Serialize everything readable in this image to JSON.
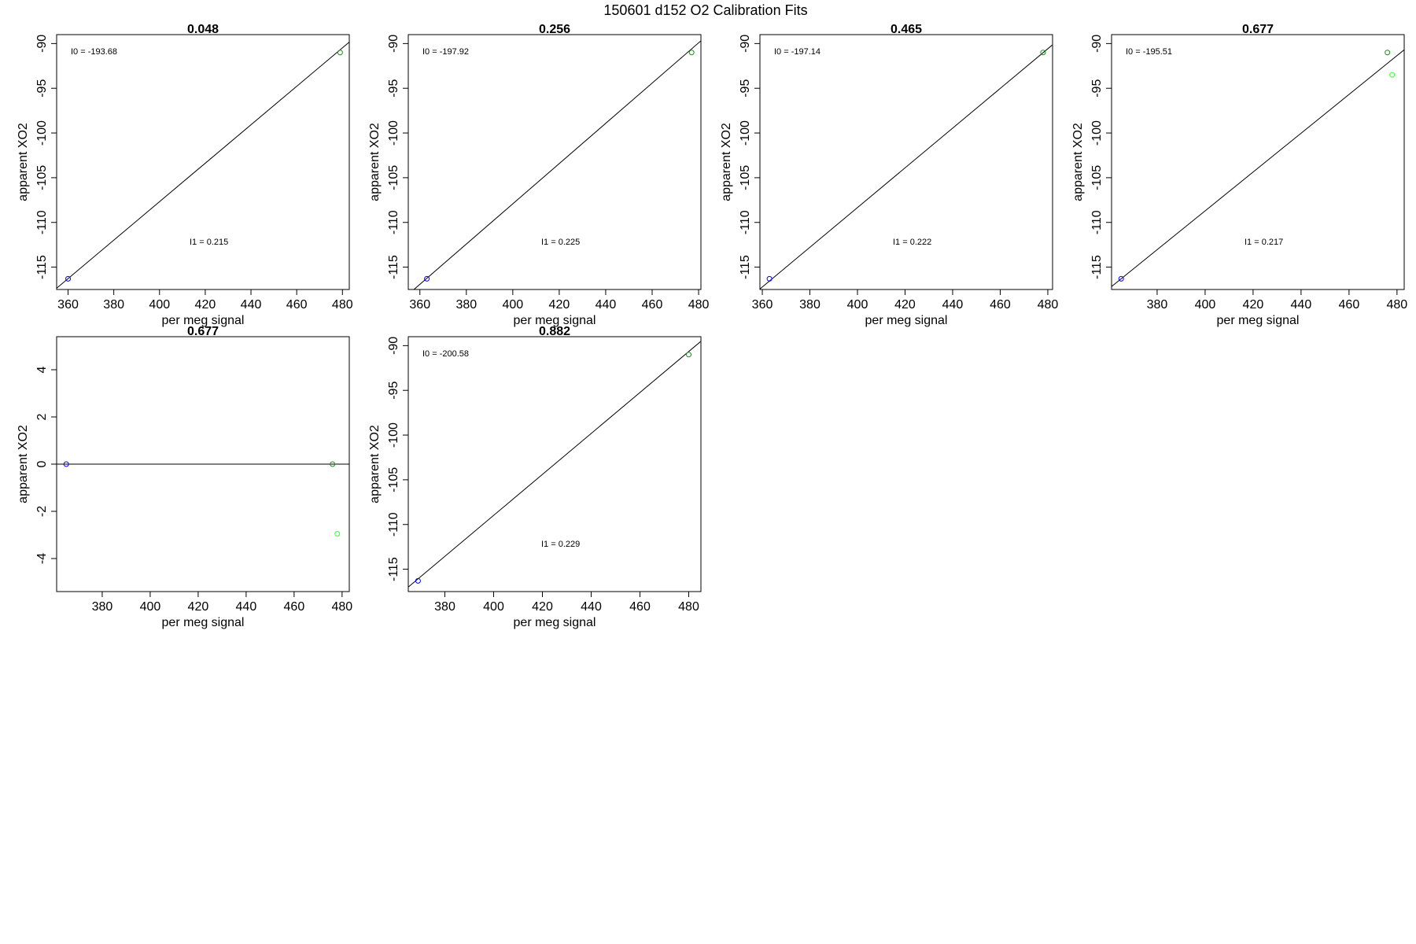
{
  "figure": {
    "title": "150601   d152   O2 Calibration Fits"
  },
  "colors": {
    "axis": "#000000",
    "fit_line": "#000000",
    "low_point": "#0000ff",
    "mid_point": "#228b22",
    "high_point": "#33ff33"
  },
  "chart_data": [
    {
      "type": "scatter",
      "title": "0.048",
      "xlabel": "per meg signal",
      "ylabel": "apparent XO2",
      "xlim": [
        355,
        483
      ],
      "ylim": [
        -117.5,
        -89
      ],
      "x_ticks": [
        360,
        380,
        400,
        420,
        440,
        460,
        480
      ],
      "y_ticks": [
        -90,
        -95,
        -100,
        -105,
        -110,
        -115
      ],
      "annotations": {
        "intercept": "I0 =  -193.68",
        "slope": "I1 =  0.215"
      },
      "fit_line": {
        "slope": 0.215,
        "intercept": -193.68
      },
      "points": [
        {
          "x": 360,
          "y": -116.3,
          "color": "blue"
        },
        {
          "x": 479,
          "y": -91,
          "color": "darkgreen"
        }
      ]
    },
    {
      "type": "scatter",
      "title": "0.256",
      "xlabel": "per meg signal",
      "ylabel": "apparent XO2",
      "xlim": [
        355,
        481
      ],
      "ylim": [
        -117.5,
        -89
      ],
      "x_ticks": [
        360,
        380,
        400,
        420,
        440,
        460,
        480
      ],
      "y_ticks": [
        -90,
        -95,
        -100,
        -105,
        -110,
        -115
      ],
      "annotations": {
        "intercept": "I0 =  -197.92",
        "slope": "I1 =  0.225"
      },
      "fit_line": {
        "slope": 0.225,
        "intercept": -197.92
      },
      "points": [
        {
          "x": 363,
          "y": -116.3,
          "color": "blue"
        },
        {
          "x": 477,
          "y": -91,
          "color": "darkgreen"
        }
      ]
    },
    {
      "type": "scatter",
      "title": "0.465",
      "xlabel": "per meg signal",
      "ylabel": "apparent XO2",
      "xlim": [
        359,
        482
      ],
      "ylim": [
        -117.5,
        -89
      ],
      "x_ticks": [
        360,
        380,
        400,
        420,
        440,
        460,
        480
      ],
      "y_ticks": [
        -90,
        -95,
        -100,
        -105,
        -110,
        -115
      ],
      "annotations": {
        "intercept": "I0 =  -197.14",
        "slope": "I1 =  0.222"
      },
      "fit_line": {
        "slope": 0.222,
        "intercept": -197.14
      },
      "points": [
        {
          "x": 363,
          "y": -116.3,
          "color": "blue"
        },
        {
          "x": 478,
          "y": -91,
          "color": "darkgreen"
        }
      ]
    },
    {
      "type": "scatter",
      "title": "0.677",
      "xlabel": "per meg signal",
      "ylabel": "apparent XO2",
      "xlim": [
        361,
        483
      ],
      "ylim": [
        -117.5,
        -89
      ],
      "x_ticks": [
        380,
        400,
        420,
        440,
        460,
        480
      ],
      "y_ticks": [
        -90,
        -95,
        -100,
        -105,
        -110,
        -115
      ],
      "annotations": {
        "intercept": "I0 =  -195.51",
        "slope": "I1 =  0.217"
      },
      "fit_line": {
        "slope": 0.217,
        "intercept": -195.51
      },
      "points": [
        {
          "x": 365,
          "y": -116.3,
          "color": "blue"
        },
        {
          "x": 476,
          "y": -91,
          "color": "darkgreen"
        },
        {
          "x": 478,
          "y": -93.5,
          "color": "lightgreen"
        }
      ]
    },
    {
      "type": "scatter",
      "title": "0.677",
      "xlabel": "per meg signal",
      "ylabel": "apparent XO2",
      "xlim": [
        361,
        483
      ],
      "ylim": [
        -5.4,
        5.4
      ],
      "x_ticks": [
        380,
        400,
        420,
        440,
        460,
        480
      ],
      "y_ticks": [
        4,
        2,
        0,
        -2,
        -4
      ],
      "annotations": {},
      "fit_line": {
        "slope": 0,
        "intercept": 0
      },
      "points": [
        {
          "x": 365,
          "y": 0,
          "color": "blue"
        },
        {
          "x": 476,
          "y": 0,
          "color": "darkgreen"
        },
        {
          "x": 478,
          "y": -2.95,
          "color": "lightgreen"
        }
      ]
    },
    {
      "type": "scatter",
      "title": "0.882",
      "xlabel": "per meg signal",
      "ylabel": "apparent XO2",
      "xlim": [
        365,
        485
      ],
      "ylim": [
        -117.5,
        -89
      ],
      "x_ticks": [
        380,
        400,
        420,
        440,
        460,
        480
      ],
      "y_ticks": [
        -90,
        -95,
        -100,
        -105,
        -110,
        -115
      ],
      "annotations": {
        "intercept": "I0 =  -200.58",
        "slope": "I1 =  0.229"
      },
      "fit_line": {
        "slope": 0.229,
        "intercept": -200.58
      },
      "points": [
        {
          "x": 369,
          "y": -116.3,
          "color": "blue"
        },
        {
          "x": 480,
          "y": -91,
          "color": "darkgreen"
        }
      ]
    }
  ]
}
